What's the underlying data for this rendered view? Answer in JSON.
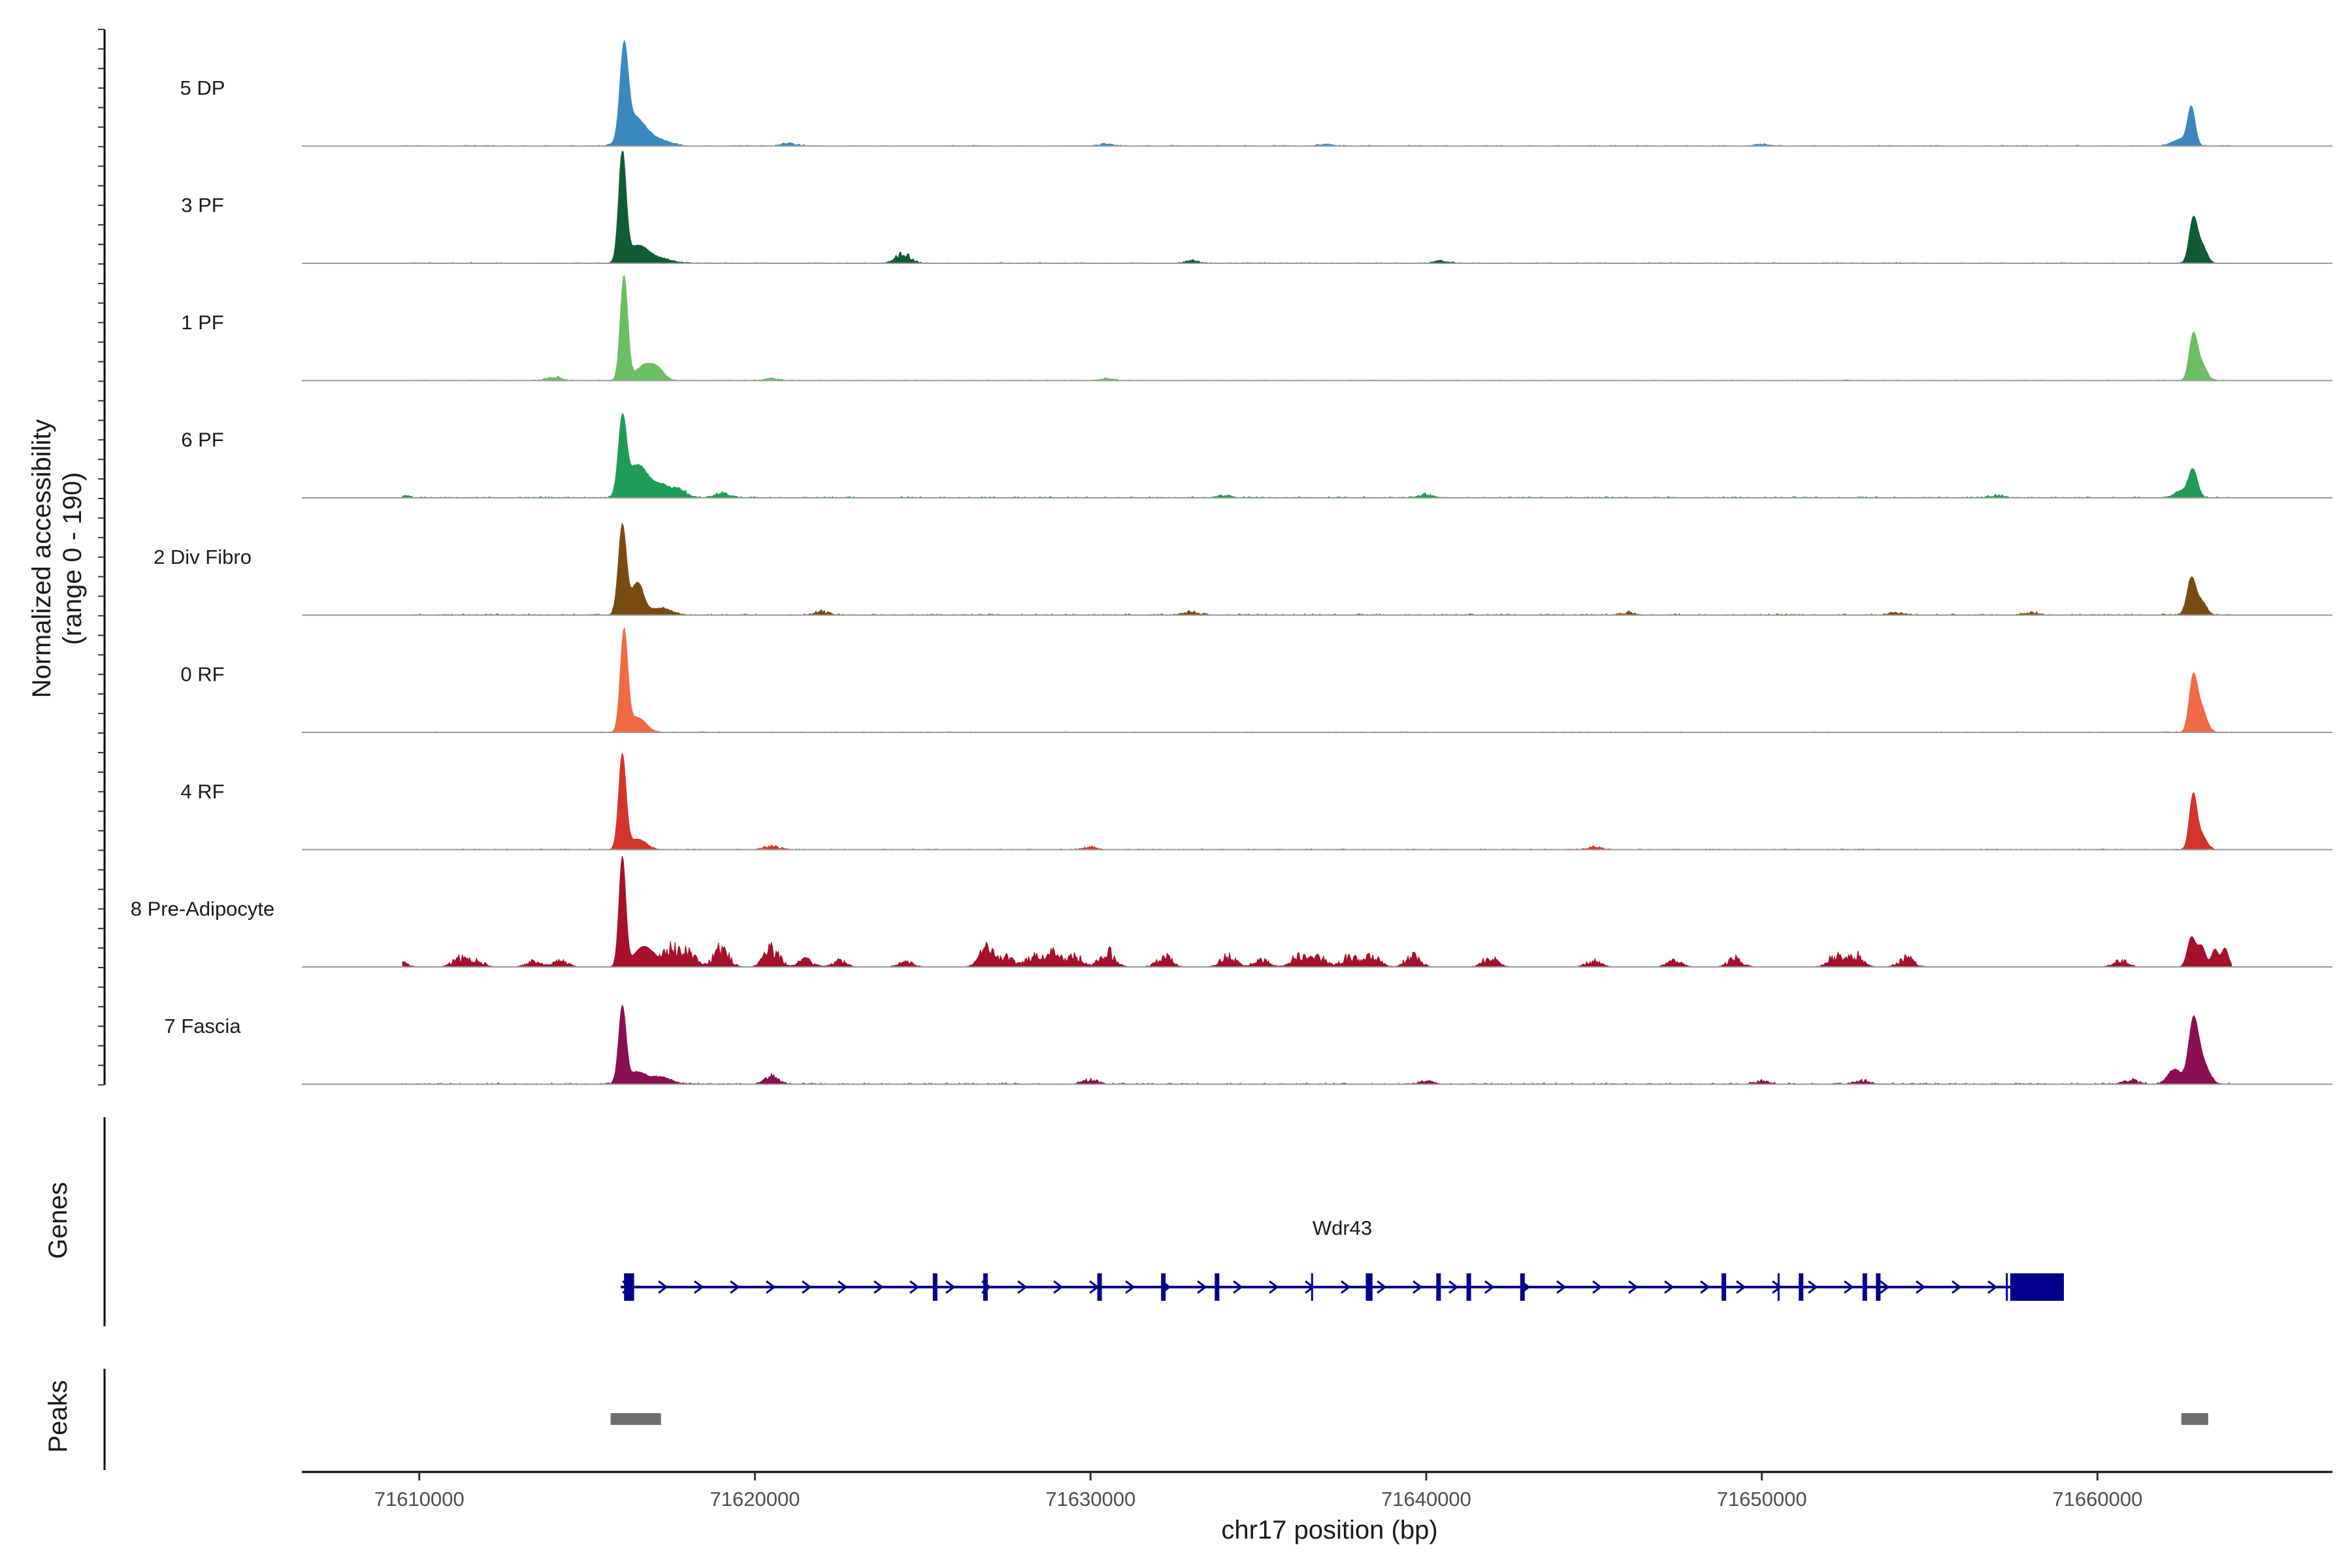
{
  "chart_data": {
    "type": "area",
    "chromosome": "chr17",
    "xlabel": "chr17 position (bp)",
    "ylabel_line1": "Normalized accessibility",
    "ylabel_line2": "(range 0 - 190)",
    "ylim": [
      0,
      190
    ],
    "xlim": [
      71606500,
      71667000
    ],
    "x_ticks": [
      71610000,
      71620000,
      71630000,
      71640000,
      71650000,
      71660000
    ],
    "x_tick_labels": [
      "71610000",
      "71620000",
      "71630000",
      "71640000",
      "71650000",
      "71660000"
    ],
    "series": [
      {
        "name": "5 DP",
        "color": "#3a88c0",
        "noise": 0.02,
        "extra": [
          [
            71621000,
            4
          ],
          [
            71630500,
            3
          ],
          [
            71637000,
            3
          ],
          [
            71650000,
            3
          ]
        ],
        "peaks": [
          [
            71616100,
            150,
            120
          ],
          [
            71616400,
            45,
            300
          ],
          [
            71617000,
            12,
            400
          ],
          [
            71662800,
            62,
            110
          ],
          [
            71662500,
            12,
            250
          ]
        ]
      },
      {
        "name": "3 PF",
        "color": "#0f5c35",
        "noise": 0.02,
        "extra": [
          [
            71624400,
            14
          ],
          [
            71633000,
            4
          ],
          [
            71640500,
            4
          ]
        ],
        "peaks": [
          [
            71616050,
            185,
            110
          ],
          [
            71616500,
            28,
            300
          ],
          [
            71617100,
            8,
            400
          ],
          [
            71662850,
            72,
            120
          ],
          [
            71663100,
            30,
            150
          ]
        ]
      },
      {
        "name": "1 PF",
        "color": "#6bbf62",
        "noise": 0.02,
        "extra": [
          [
            71614000,
            6
          ],
          [
            71620500,
            3
          ],
          [
            71630500,
            3
          ]
        ],
        "peaks": [
          [
            71616100,
            178,
            110
          ],
          [
            71616700,
            25,
            250
          ],
          [
            71617100,
            18,
            200
          ],
          [
            71662850,
            75,
            120
          ],
          [
            71663100,
            28,
            150
          ]
        ]
      },
      {
        "name": "6 PF",
        "color": "#1e9c57",
        "noise": 0.03,
        "extra": [
          [
            71609300,
            7
          ],
          [
            71617800,
            10
          ],
          [
            71619000,
            8
          ],
          [
            71634000,
            4
          ],
          [
            71640000,
            5
          ],
          [
            71657000,
            4
          ]
        ],
        "peaks": [
          [
            71616050,
            128,
            120
          ],
          [
            71616500,
            55,
            280
          ],
          [
            71617200,
            22,
            300
          ],
          [
            71662850,
            47,
            130
          ],
          [
            71662500,
            12,
            200
          ]
        ]
      },
      {
        "name": "2 Div Fibro",
        "color": "#7a4b10",
        "noise": 0.03,
        "extra": [
          [
            71622000,
            5
          ],
          [
            71633000,
            5
          ],
          [
            71646000,
            4
          ],
          [
            71654000,
            4
          ],
          [
            71658000,
            4
          ]
        ],
        "peaks": [
          [
            71616050,
            152,
            120
          ],
          [
            71616500,
            55,
            180
          ],
          [
            71617200,
            12,
            300
          ],
          [
            71662800,
            62,
            130
          ],
          [
            71663100,
            22,
            150
          ]
        ]
      },
      {
        "name": "0 RF",
        "color": "#f06a43",
        "noise": 0.02,
        "extra": [],
        "peaks": [
          [
            71616100,
            170,
            110
          ],
          [
            71616500,
            25,
            250
          ],
          [
            71662850,
            90,
            120
          ],
          [
            71663100,
            40,
            150
          ]
        ]
      },
      {
        "name": "4 RF",
        "color": "#d3352a",
        "noise": 0.02,
        "extra": [
          [
            71620500,
            6
          ],
          [
            71630000,
            4
          ],
          [
            71645000,
            4
          ]
        ],
        "peaks": [
          [
            71616050,
            160,
            110
          ],
          [
            71616500,
            18,
            250
          ],
          [
            71662850,
            90,
            110
          ],
          [
            71663100,
            25,
            150
          ]
        ]
      },
      {
        "name": "8 Pre-Adipocyte",
        "color": "#a5102b",
        "noise": 0.0,
        "sparse": true,
        "extra": [
          [
            71609300,
            18
          ],
          [
            71611200,
            14
          ],
          [
            71611700,
            10
          ],
          [
            71613400,
            9
          ],
          [
            71614200,
            10
          ],
          [
            71617500,
            28
          ],
          [
            71618000,
            25
          ],
          [
            71619000,
            30
          ],
          [
            71620500,
            30
          ],
          [
            71621500,
            12
          ],
          [
            71622500,
            10
          ],
          [
            71624500,
            8
          ],
          [
            71626900,
            28
          ],
          [
            71627500,
            15
          ],
          [
            71628300,
            18
          ],
          [
            71628900,
            22
          ],
          [
            71629500,
            20
          ],
          [
            71630500,
            25
          ],
          [
            71632200,
            18
          ],
          [
            71634100,
            18
          ],
          [
            71635100,
            14
          ],
          [
            71636200,
            18
          ],
          [
            71636800,
            15
          ],
          [
            71637700,
            18
          ],
          [
            71638400,
            18
          ],
          [
            71639600,
            18
          ],
          [
            71641900,
            15
          ],
          [
            71645000,
            10
          ],
          [
            71647400,
            10
          ],
          [
            71649200,
            14
          ],
          [
            71652200,
            18
          ],
          [
            71652800,
            20
          ],
          [
            71654300,
            15
          ],
          [
            71660700,
            10
          ]
        ],
        "peaks": [
          [
            71616050,
            185,
            100
          ],
          [
            71616700,
            35,
            300
          ],
          [
            71662800,
            50,
            120
          ],
          [
            71663100,
            35,
            120
          ],
          [
            71663500,
            30,
            100
          ],
          [
            71663800,
            32,
            100
          ]
        ]
      },
      {
        "name": "7 Fascia",
        "color": "#8a0f52",
        "noise": 0.03,
        "extra": [
          [
            71620500,
            12
          ],
          [
            71630000,
            8
          ],
          [
            71640000,
            5
          ],
          [
            71650000,
            5
          ],
          [
            71653000,
            6
          ],
          [
            71661000,
            7
          ]
        ],
        "peaks": [
          [
            71616050,
            130,
            110
          ],
          [
            71616500,
            20,
            250
          ],
          [
            71617200,
            12,
            300
          ],
          [
            71662850,
            95,
            140
          ],
          [
            71663100,
            40,
            200
          ],
          [
            71662300,
            25,
            200
          ]
        ]
      }
    ],
    "genes_label": "Genes",
    "peaks_label": "Peaks",
    "gene": {
      "name": "Wdr43",
      "strand": "+",
      "start": 71616000,
      "end": 71659000,
      "color": "#00008b",
      "exons": [
        [
          71616100,
          71616400
        ],
        [
          71625300,
          71625400
        ],
        [
          71626800,
          71626900
        ],
        [
          71630200,
          71630300
        ],
        [
          71632100,
          71632200
        ],
        [
          71633700,
          71633800
        ],
        [
          71638200,
          71638400
        ],
        [
          71640300,
          71640400
        ],
        [
          71641200,
          71641300
        ],
        [
          71642800,
          71642900
        ],
        [
          71648800,
          71648900
        ],
        [
          71651100,
          71651200
        ],
        [
          71653000,
          71653100
        ],
        [
          71653400,
          71653500
        ],
        [
          71657400,
          71659000
        ]
      ],
      "introns_ticks": [
        71636600,
        71650500,
        71657300
      ]
    },
    "peaks": [
      {
        "start": 71615700,
        "end": 71617200,
        "color": "#6e6e6e"
      },
      {
        "start": 71662500,
        "end": 71663300,
        "color": "#6e6e6e"
      }
    ]
  }
}
